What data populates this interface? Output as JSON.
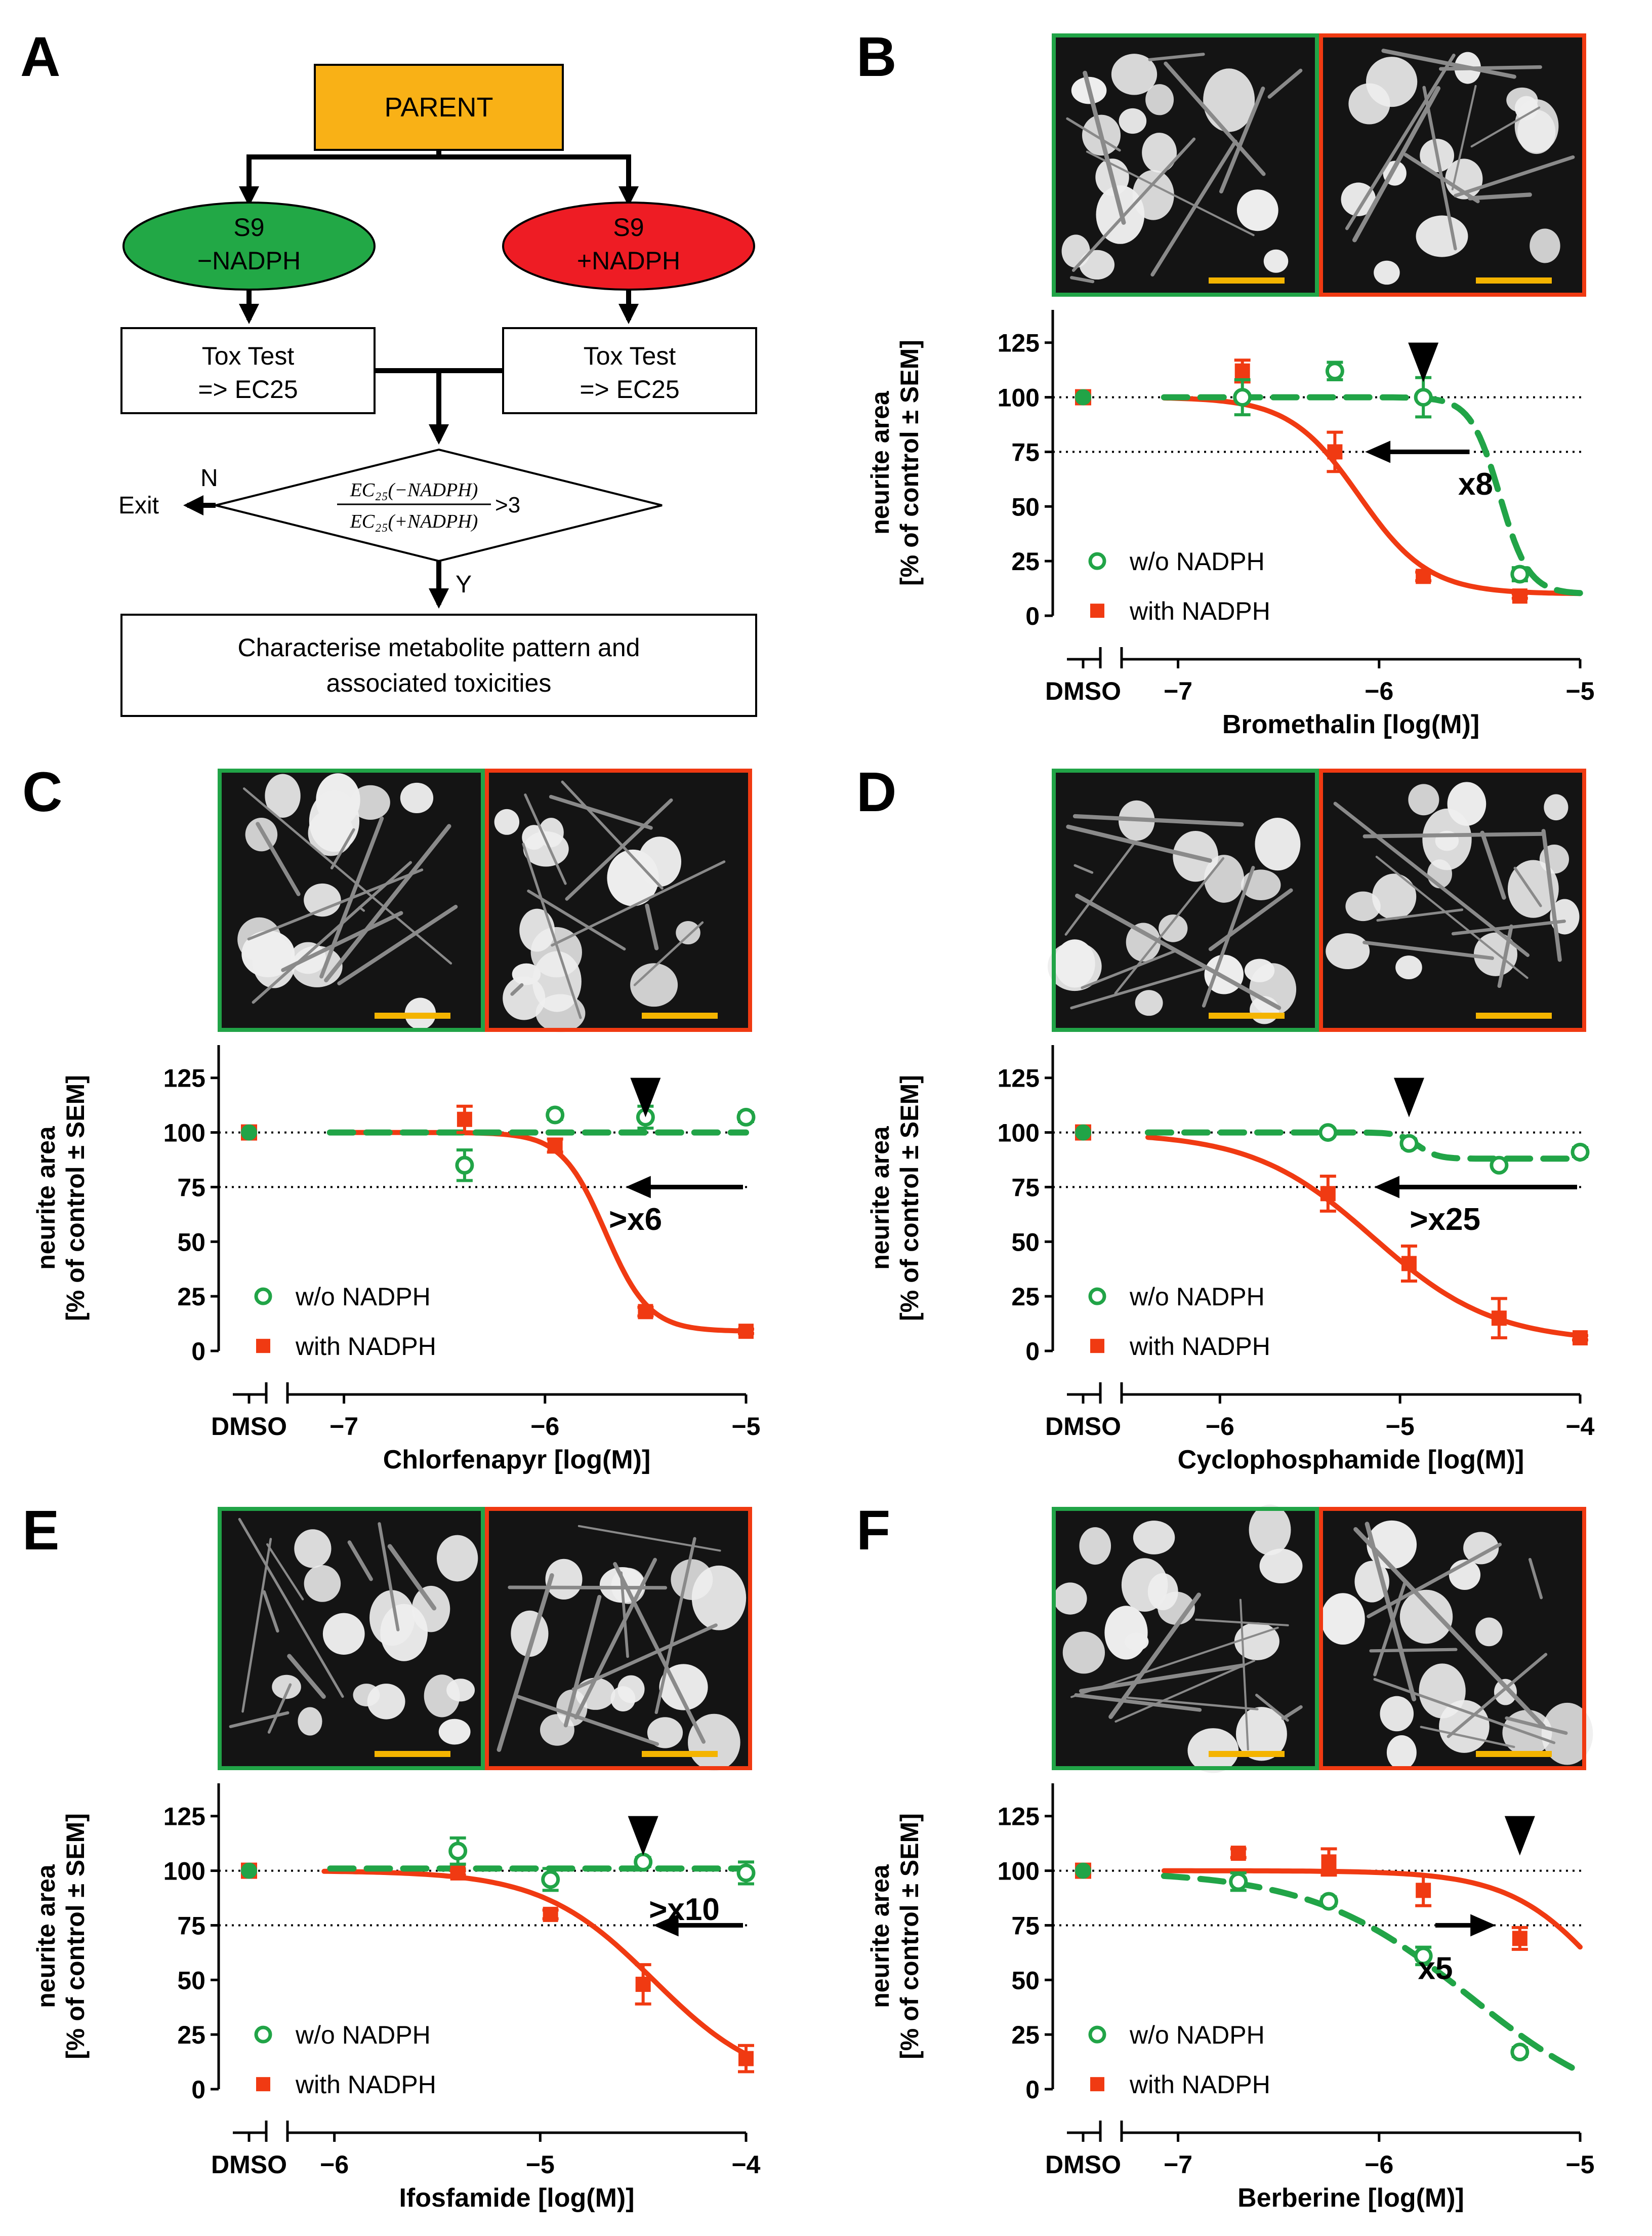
{
  "flowchart": {
    "panel_letter": "A",
    "parent": "PARENT",
    "left_ellipse": [
      "S9",
      "−NADPH"
    ],
    "right_ellipse": [
      "S9",
      "+NADPH"
    ],
    "left_box": [
      "Tox Test",
      "=> EC25"
    ],
    "right_box": [
      "Tox Test",
      "=> EC25"
    ],
    "decision_num": "EC₂₅(−NADPH)",
    "decision_den": "EC₂₅(+NADPH)",
    "decision_rhs": ">3",
    "no_label": "N",
    "exit_label": "Exit",
    "yes_label": "Y",
    "final_box": [
      "Characterise metabolite pattern and",
      "associated toxicities"
    ]
  },
  "colors": {
    "wo_nadph": "#21a447",
    "with_nadph": "#f03a12",
    "parent_fill": "#f9b116",
    "ellipse_green": "#22a846",
    "ellipse_red": "#ee1c24",
    "scalebar": "#f4b400"
  },
  "legend": {
    "wo": "w/o NADPH",
    "with": "with NADPH"
  },
  "ylabel_line1": "neurite area",
  "ylabel_line2": "[% of control ± SEM]",
  "dmso_label": "DMSO",
  "chart_data": [
    {
      "panel": "B",
      "type": "line",
      "xlabel": "Bromethalin [log(M)]",
      "xlim": [
        -7.15,
        -5
      ],
      "xticks": [
        -7,
        -6,
        -5
      ],
      "xtick_labels": [
        "−7",
        "−6",
        "−5"
      ],
      "ylim": [
        0,
        140
      ],
      "yticks": [
        0,
        25,
        50,
        75,
        100,
        125
      ],
      "ytick_labels": [
        "0",
        "25",
        "50",
        "75",
        "100",
        "125"
      ],
      "annotation": "x8",
      "arrow_direction": "left",
      "marker_x": -5.78,
      "series": [
        {
          "name": "w/o NADPH",
          "dmso": 100,
          "points": [
            [
              -6.68,
              100,
              8
            ],
            [
              -6.22,
              112,
              4
            ],
            [
              -5.78,
              100,
              9
            ],
            [
              -5.3,
              19,
              3
            ]
          ],
          "fit": {
            "top": 100,
            "bottom": 10,
            "ic50": -5.4,
            "slope": 6
          }
        },
        {
          "name": "with NADPH",
          "dmso": 100,
          "points": [
            [
              -6.68,
              112,
              5
            ],
            [
              -6.22,
              75,
              9
            ],
            [
              -5.78,
              18,
              2
            ],
            [
              -5.3,
              9,
              1
            ]
          ],
          "fit": {
            "top": 100,
            "bottom": 10,
            "ic50": -6.1,
            "slope": 2.5
          }
        }
      ]
    },
    {
      "panel": "C",
      "type": "line",
      "xlabel": "Chlorfenapyr [log(M)]",
      "xlim": [
        -7.15,
        -5
      ],
      "xticks": [
        -7,
        -6,
        -5
      ],
      "xtick_labels": [
        "−7",
        "−6",
        "−5"
      ],
      "ylim": [
        0,
        140
      ],
      "yticks": [
        0,
        25,
        50,
        75,
        100,
        125
      ],
      "ytick_labels": [
        "0",
        "25",
        "50",
        "75",
        "100",
        "125"
      ],
      "annotation": ">x6",
      "arrow_direction": "left",
      "marker_x": -5.5,
      "series": [
        {
          "name": "w/o NADPH",
          "dmso": 100,
          "points": [
            [
              -6.4,
              85,
              7
            ],
            [
              -5.95,
              108,
              2
            ],
            [
              -5.5,
              107,
              5
            ],
            [
              -5,
              107,
              2
            ]
          ],
          "fit": {
            "flat": 100
          }
        },
        {
          "name": "with NADPH",
          "dmso": 100,
          "points": [
            [
              -6.4,
              106,
              6
            ],
            [
              -5.95,
              94,
              3
            ],
            [
              -5.5,
              18,
              2
            ],
            [
              -5,
              9,
              1
            ]
          ],
          "fit": {
            "top": 100,
            "bottom": 9,
            "ic50": -5.7,
            "slope": 4
          }
        }
      ]
    },
    {
      "panel": "D",
      "type": "line",
      "xlabel": "Cyclophosphamide [log(M)]",
      "xlim": [
        -6.4,
        -4
      ],
      "xticks": [
        -6,
        -5,
        -4
      ],
      "xtick_labels": [
        "−6",
        "−5",
        "−4"
      ],
      "ylim": [
        0,
        140
      ],
      "yticks": [
        0,
        25,
        50,
        75,
        100,
        125
      ],
      "ytick_labels": [
        "0",
        "25",
        "50",
        "75",
        "100",
        "125"
      ],
      "annotation": ">x25",
      "arrow_direction": "left",
      "marker_x": -4.95,
      "series": [
        {
          "name": "w/o NADPH",
          "dmso": 100,
          "points": [
            [
              -5.4,
              100,
              1
            ],
            [
              -4.95,
              95,
              2
            ],
            [
              -4.45,
              85,
              1
            ],
            [
              -4,
              91,
              2
            ]
          ],
          "fit": {
            "top": 100,
            "bottom": 88,
            "ic50": -4.9,
            "slope": 8,
            "xstart": -6.4
          }
        },
        {
          "name": "with NADPH",
          "dmso": 100,
          "points": [
            [
              -5.4,
              72,
              8
            ],
            [
              -4.95,
              40,
              8
            ],
            [
              -4.45,
              15,
              9
            ],
            [
              -4,
              6,
              1
            ]
          ],
          "fit": {
            "top": 100,
            "bottom": 4,
            "ic50": -5.15,
            "slope": 1.3,
            "xstart": -6.4
          }
        }
      ]
    },
    {
      "panel": "E",
      "type": "line",
      "xlabel": "Ifosfamide [log(M)]",
      "xlim": [
        -6.1,
        -4
      ],
      "xticks": [
        -6,
        -5,
        -4
      ],
      "xtick_labels": [
        "−6",
        "−5",
        "−4"
      ],
      "ylim": [
        0,
        140
      ],
      "yticks": [
        0,
        25,
        50,
        75,
        100,
        125
      ],
      "ytick_labels": [
        "0",
        "25",
        "50",
        "75",
        "100",
        "125"
      ],
      "annotation": ">x10",
      "arrow_direction": "left",
      "marker_x": -4.5,
      "series": [
        {
          "name": "w/o NADPH",
          "dmso": 100,
          "points": [
            [
              -5.4,
              109,
              6
            ],
            [
              -4.95,
              96,
              5
            ],
            [
              -4.5,
              104,
              2
            ],
            [
              -4,
              99,
              5
            ]
          ],
          "fit": {
            "flat": 101
          }
        },
        {
          "name": "with NADPH",
          "dmso": 100,
          "points": [
            [
              -5.4,
              99,
              1
            ],
            [
              -4.95,
              80,
              2
            ],
            [
              -4.5,
              48,
              9
            ],
            [
              -4,
              14,
              6
            ]
          ],
          "fit": {
            "top": 100,
            "bottom": 0,
            "ic50": -4.45,
            "slope": 1.6,
            "xstart": -6.05
          }
        }
      ]
    },
    {
      "panel": "F",
      "type": "line",
      "xlabel": "Berberine [log(M)]",
      "xlim": [
        -7.15,
        -5
      ],
      "xticks": [
        -7,
        -6,
        -5
      ],
      "xtick_labels": [
        "−7",
        "−6",
        "−5"
      ],
      "ylim": [
        0,
        140
      ],
      "yticks": [
        0,
        25,
        50,
        75,
        100,
        125
      ],
      "ytick_labels": [
        "0",
        "25",
        "50",
        "75",
        "100",
        "125"
      ],
      "annotation": "x5",
      "arrow_direction": "right",
      "marker_x": -5.3,
      "series": [
        {
          "name": "w/o NADPH",
          "dmso": 100,
          "points": [
            [
              -6.7,
              95,
              4
            ],
            [
              -6.25,
              86,
              2
            ],
            [
              -5.78,
              61,
              4
            ],
            [
              -5.3,
              17,
              2
            ]
          ],
          "fit": {
            "top": 100,
            "bottom": -15,
            "ic50": -5.55,
            "slope": 1.1
          }
        },
        {
          "name": "with NADPH",
          "dmso": 100,
          "points": [
            [
              -6.7,
              108,
              2
            ],
            [
              -6.25,
              104,
              6
            ],
            [
              -5.78,
              91,
              7
            ],
            [
              -5.3,
              69,
              5
            ]
          ],
          "fit": {
            "top": 100,
            "bottom": 0,
            "ic50": -4.85,
            "slope": 1.8
          }
        }
      ]
    }
  ]
}
